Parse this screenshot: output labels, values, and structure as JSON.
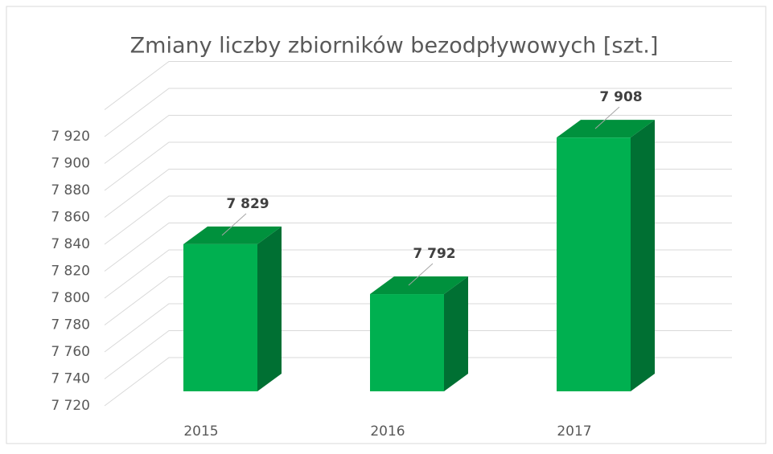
{
  "chart_data": {
    "type": "bar3d",
    "title": "Zmiany liczby zbiorników bezodpływowych [szt.]",
    "categories": [
      "2015",
      "2016",
      "2017"
    ],
    "values": [
      7829,
      7792,
      7908
    ],
    "value_labels": [
      "7 829",
      "7 792",
      "7 908"
    ],
    "color": "#00b050",
    "ylim": [
      7720,
      7940
    ],
    "yticks": [
      {
        "value": 7720,
        "label": "7 720"
      },
      {
        "value": 7740,
        "label": "7 740"
      },
      {
        "value": 7760,
        "label": "7 760"
      },
      {
        "value": 7780,
        "label": "7 780"
      },
      {
        "value": 7800,
        "label": "7 800"
      },
      {
        "value": 7820,
        "label": "7 820"
      },
      {
        "value": 7840,
        "label": "7 840"
      },
      {
        "value": 7860,
        "label": "7 860"
      },
      {
        "value": 7880,
        "label": "7 880"
      },
      {
        "value": 7900,
        "label": "7 900"
      },
      {
        "value": 7920,
        "label": "7 920"
      }
    ],
    "grid": true
  }
}
